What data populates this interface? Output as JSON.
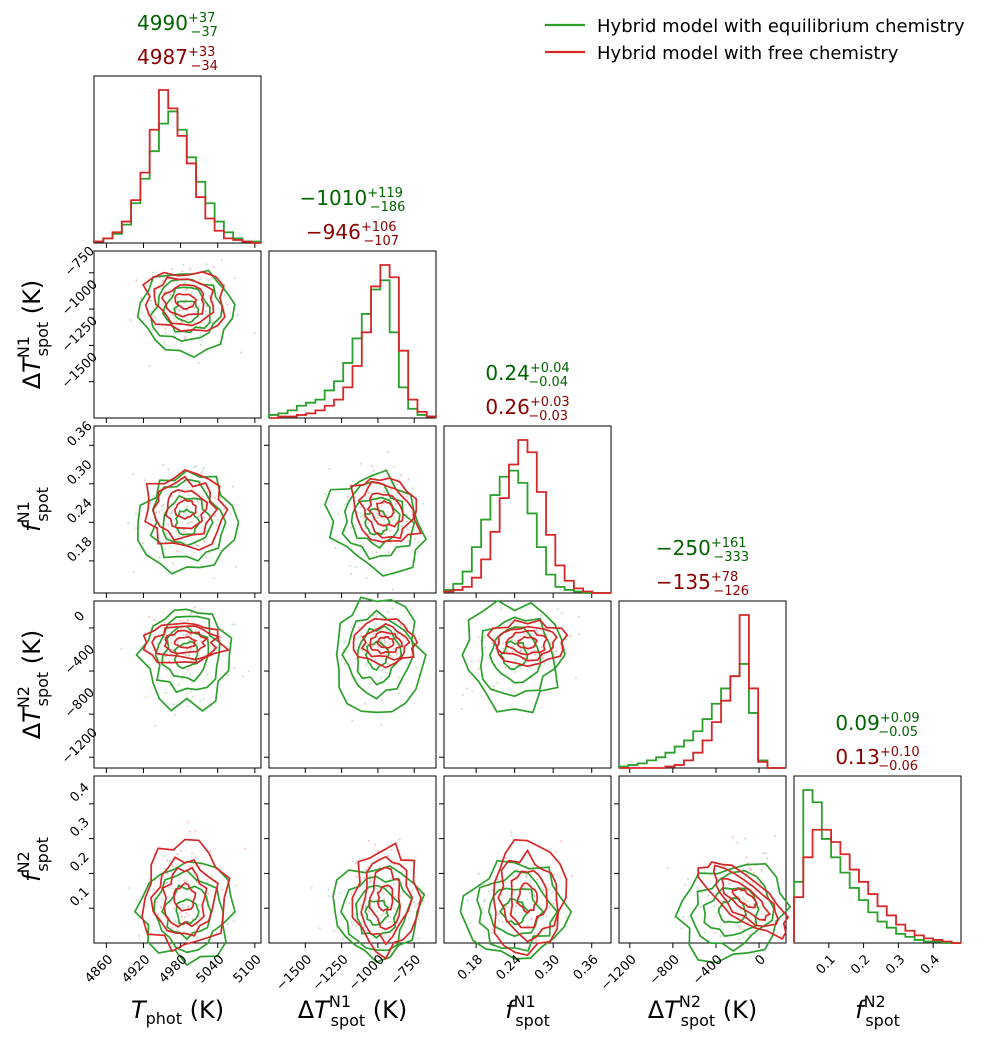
{
  "colors": {
    "eq": "#2ca02c",
    "free": "#d62728",
    "eq_text": "#006400",
    "free_text": "#8b0000"
  },
  "legend": {
    "position": "top-right",
    "entries": [
      {
        "label": "Hybrid model with equilibrium chemistry",
        "series": "eq"
      },
      {
        "label": "Hybrid model with free chemistry",
        "series": "free"
      }
    ]
  },
  "chart_data": {
    "type": "corner",
    "params": [
      {
        "key": "T_phot",
        "range": [
          4840,
          5110
        ],
        "ticks": [
          4860,
          4920,
          4980,
          5040,
          5100
        ],
        "tick_labels": [
          "4860",
          "4920",
          "4980",
          "5040",
          "5100"
        ],
        "axis_label": {
          "main": "T",
          "sup": "",
          "sub": "phot",
          "unit": "(K)",
          "delta": false
        },
        "summary": {
          "eq": {
            "value": "4990",
            "plus": "+37",
            "minus": "−37"
          },
          "free": {
            "value": "4987",
            "plus": "+33",
            "minus": "−34"
          }
        },
        "hist": {
          "eq": [
            0.01,
            0.03,
            0.06,
            0.12,
            0.26,
            0.42,
            0.6,
            0.78,
            0.86,
            0.74,
            0.56,
            0.4,
            0.26,
            0.14,
            0.07,
            0.03,
            0.01,
            0.01
          ],
          "free": [
            0.01,
            0.03,
            0.07,
            0.14,
            0.28,
            0.46,
            0.74,
            1.0,
            0.88,
            0.7,
            0.52,
            0.3,
            0.16,
            0.08,
            0.03,
            0.02,
            0.01,
            0.0
          ]
        }
      },
      {
        "key": "dT_N1",
        "range": [
          -1750,
          -600
        ],
        "ticks": [
          -1500,
          -1250,
          -1000,
          -750
        ],
        "tick_labels": [
          "−1500",
          "−1250",
          "−1000",
          "−750"
        ],
        "axis_label": {
          "main": "T",
          "sup": "N1",
          "sub": "spot",
          "unit": "(K)",
          "delta": true
        },
        "summary": {
          "eq": {
            "value": "−1010",
            "plus": "+119",
            "minus": "−186"
          },
          "free": {
            "value": "−946",
            "plus": "+106",
            "minus": "−107"
          }
        },
        "hist": {
          "eq": [
            0.02,
            0.03,
            0.05,
            0.08,
            0.1,
            0.12,
            0.18,
            0.24,
            0.36,
            0.52,
            0.68,
            0.84,
            0.9,
            0.56,
            0.2,
            0.06,
            0.02,
            0.01
          ],
          "free": [
            0.0,
            0.01,
            0.01,
            0.02,
            0.03,
            0.05,
            0.08,
            0.12,
            0.2,
            0.34,
            0.56,
            0.86,
            1.0,
            0.92,
            0.44,
            0.12,
            0.04,
            0.01
          ]
        }
      },
      {
        "key": "f_N1",
        "range": [
          0.13,
          0.39
        ],
        "ticks": [
          0.18,
          0.24,
          0.3,
          0.36
        ],
        "tick_labels": [
          "0.18",
          "0.24",
          "0.30",
          "0.36"
        ],
        "axis_label": {
          "main": "f",
          "sup": "N1",
          "sub": "spot",
          "unit": "",
          "delta": false
        },
        "summary": {
          "eq": {
            "value": "0.24",
            "plus": "+0.04",
            "minus": "−0.04"
          },
          "free": {
            "value": "0.26",
            "plus": "+0.03",
            "minus": "−0.03"
          }
        },
        "hist": {
          "eq": [
            0.02,
            0.06,
            0.14,
            0.3,
            0.48,
            0.64,
            0.76,
            0.8,
            0.72,
            0.52,
            0.3,
            0.12,
            0.04,
            0.02,
            0.01,
            0.0,
            0.0,
            0.0
          ],
          "free": [
            0.01,
            0.02,
            0.04,
            0.1,
            0.22,
            0.4,
            0.62,
            0.84,
            1.0,
            0.92,
            0.66,
            0.38,
            0.18,
            0.08,
            0.03,
            0.01,
            0.0,
            0.0
          ]
        }
      },
      {
        "key": "dT_N2",
        "range": [
          -1300,
          250
        ],
        "ticks": [
          -1200,
          -800,
          -400,
          0
        ],
        "tick_labels": [
          "−1200",
          "−800",
          "−400",
          "0"
        ],
        "axis_label": {
          "main": "T",
          "sup": "N2",
          "sub": "spot",
          "unit": "(K)",
          "delta": true
        },
        "summary": {
          "eq": {
            "value": "−250",
            "plus": "+161",
            "minus": "−333"
          },
          "free": {
            "value": "−135",
            "plus": "+78",
            "minus": "−126"
          }
        },
        "hist": {
          "eq": [
            0.01,
            0.02,
            0.03,
            0.05,
            0.07,
            0.1,
            0.14,
            0.18,
            0.24,
            0.32,
            0.42,
            0.52,
            0.6,
            0.68,
            0.36,
            0.05,
            0.0,
            0.0
          ],
          "free": [
            0.0,
            0.0,
            0.0,
            0.0,
            0.0,
            0.01,
            0.02,
            0.05,
            0.1,
            0.18,
            0.3,
            0.44,
            0.6,
            1.0,
            0.52,
            0.04,
            0.0,
            0.0
          ]
        }
      },
      {
        "key": "f_N2",
        "range": [
          0.0,
          0.48
        ],
        "ticks": [
          0.1,
          0.2,
          0.3,
          0.4
        ],
        "tick_labels": [
          "0.1",
          "0.2",
          "0.3",
          "0.4"
        ],
        "axis_label": {
          "main": "f",
          "sup": "N2",
          "sub": "spot",
          "unit": "",
          "delta": false
        },
        "summary": {
          "eq": {
            "value": "0.09",
            "plus": "+0.09",
            "minus": "−0.05"
          },
          "free": {
            "value": "0.13",
            "plus": "+0.10",
            "minus": "−0.06"
          }
        },
        "hist": {
          "eq": [
            0.4,
            1.0,
            0.92,
            0.68,
            0.56,
            0.46,
            0.36,
            0.28,
            0.2,
            0.14,
            0.1,
            0.06,
            0.04,
            0.02,
            0.01,
            0.01,
            0.0,
            0.0
          ],
          "free": [
            0.3,
            0.56,
            0.74,
            0.74,
            0.66,
            0.58,
            0.48,
            0.4,
            0.32,
            0.24,
            0.18,
            0.12,
            0.08,
            0.05,
            0.03,
            0.02,
            0.01,
            0.0
          ]
        }
      }
    ],
    "series": [
      {
        "key": "eq",
        "name": "Hybrid model with equilibrium chemistry",
        "color": "#2ca02c"
      },
      {
        "key": "free",
        "name": "Hybrid model with free chemistry",
        "color": "#d62728"
      }
    ],
    "posterior_summary": {
      "T_phot": {
        "eq": [
          4990,
          37,
          37
        ],
        "free": [
          4987,
          33,
          34
        ]
      },
      "dT_N1": {
        "eq": [
          -1010,
          119,
          186
        ],
        "free": [
          -946,
          106,
          107
        ]
      },
      "f_N1": {
        "eq": [
          0.24,
          0.04,
          0.04
        ],
        "free": [
          0.26,
          0.03,
          0.03
        ]
      },
      "dT_N2": {
        "eq": [
          -250,
          161,
          333
        ],
        "free": [
          -135,
          78,
          126
        ]
      },
      "f_N2": {
        "eq": [
          0.09,
          0.09,
          0.05
        ],
        "free": [
          0.13,
          0.1,
          0.06
        ]
      }
    },
    "correlation": {
      "1_2": 0.55,
      "3_4": 0.35,
      "0_1": -0.15
    },
    "grid": false
  }
}
